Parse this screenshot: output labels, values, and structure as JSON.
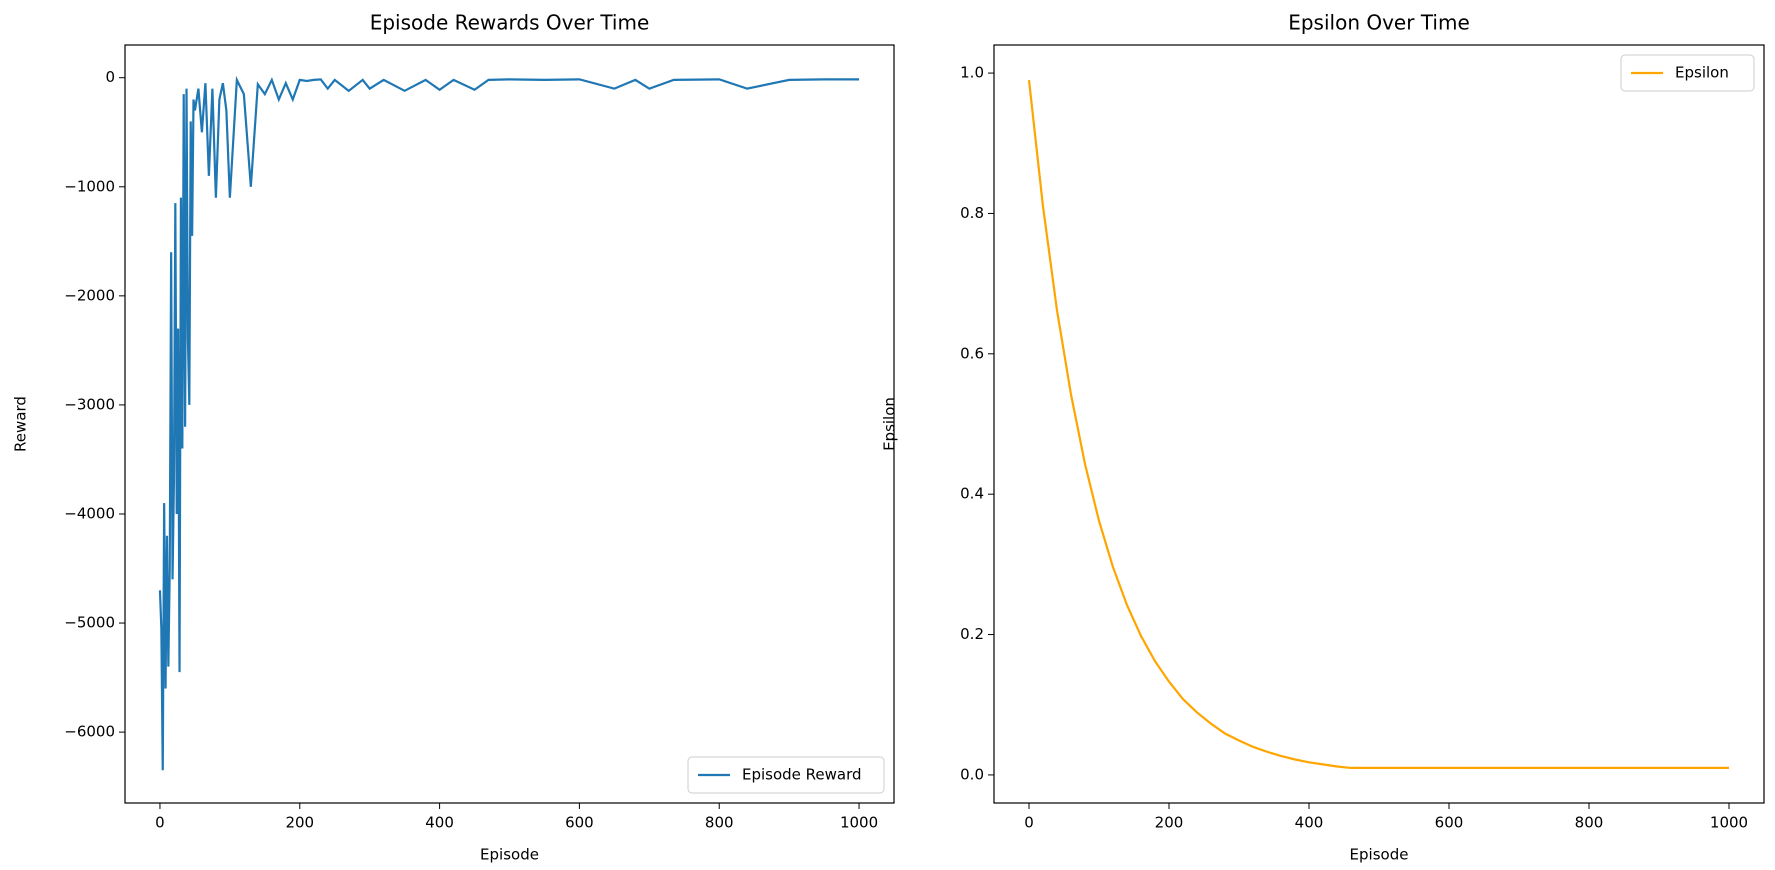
{
  "chart_data": [
    {
      "type": "line",
      "title": "Episode Rewards Over Time",
      "xlabel": "Episode",
      "ylabel": "Reward",
      "x": [
        0,
        2,
        4,
        6,
        8,
        10,
        12,
        14,
        16,
        18,
        20,
        22,
        24,
        26,
        28,
        30,
        32,
        34,
        36,
        38,
        40,
        42,
        44,
        46,
        48,
        50,
        55,
        60,
        65,
        70,
        75,
        80,
        85,
        90,
        95,
        100,
        110,
        120,
        130,
        140,
        150,
        160,
        170,
        180,
        190,
        200,
        210,
        220,
        230,
        240,
        250,
        270,
        290,
        300,
        320,
        350,
        380,
        400,
        420,
        450,
        470,
        500,
        550,
        600,
        650,
        680,
        700,
        735,
        800,
        840,
        900,
        950,
        1000
      ],
      "series": [
        {
          "name": "Episode Reward",
          "color": "#1f77b4",
          "values": [
            -4700,
            -5050,
            -6350,
            -3900,
            -5600,
            -4200,
            -5400,
            -4500,
            -1600,
            -4600,
            -3700,
            -1150,
            -4000,
            -2300,
            -5450,
            -1100,
            -3400,
            -150,
            -3200,
            -100,
            -2400,
            -3000,
            -400,
            -1450,
            -200,
            -300,
            -100,
            -500,
            -50,
            -900,
            -100,
            -1100,
            -200,
            -50,
            -300,
            -1100,
            -20,
            -150,
            -1000,
            -60,
            -150,
            -20,
            -200,
            -50,
            -200,
            -20,
            -30,
            -20,
            -15,
            -100,
            -20,
            -120,
            -20,
            -100,
            -20,
            -120,
            -20,
            -110,
            -20,
            -110,
            -20,
            -15,
            -20,
            -15,
            -100,
            -20,
            -100,
            -20,
            -15,
            -100,
            -20,
            -15,
            -15
          ]
        }
      ],
      "xlim": [
        -50,
        1050
      ],
      "ylim": [
        -6650,
        300
      ],
      "xticks": [
        0,
        200,
        400,
        600,
        800,
        1000
      ],
      "yticks": [
        {
          "value": -6000,
          "label": "−6000"
        },
        {
          "value": -5000,
          "label": "−5000"
        },
        {
          "value": -4000,
          "label": "−4000"
        },
        {
          "value": -3000,
          "label": "−3000"
        },
        {
          "value": -2000,
          "label": "−2000"
        },
        {
          "value": -1000,
          "label": "−1000"
        },
        0
      ],
      "legend": "lower right"
    },
    {
      "type": "line",
      "title": "Epsilon Over Time",
      "xlabel": "Episode",
      "ylabel": "Epsilon",
      "x": [
        0,
        20,
        40,
        60,
        80,
        100,
        120,
        140,
        160,
        180,
        200,
        220,
        240,
        260,
        280,
        300,
        320,
        340,
        360,
        380,
        400,
        420,
        440,
        460,
        1000
      ],
      "series": [
        {
          "name": "Epsilon",
          "color": "#ffa500",
          "values": [
            0.99,
            0.81,
            0.662,
            0.542,
            0.443,
            0.362,
            0.296,
            0.242,
            0.198,
            0.162,
            0.133,
            0.108,
            0.089,
            0.073,
            0.059,
            0.049,
            0.04,
            0.033,
            0.027,
            0.022,
            0.018,
            0.015,
            0.012,
            0.01,
            0.01
          ]
        }
      ],
      "xlim": [
        -50,
        1050
      ],
      "ylim": [
        -0.04,
        1.04
      ],
      "xticks": [
        0,
        200,
        400,
        600,
        800,
        1000
      ],
      "yticks": [
        {
          "value": 0,
          "label": "0.0"
        },
        {
          "value": 0.2,
          "label": "0.2"
        },
        {
          "value": 0.4,
          "label": "0.4"
        },
        {
          "value": 0.6,
          "label": "0.6"
        },
        {
          "value": 0.8,
          "label": "0.8"
        },
        {
          "value": 1,
          "label": "1.0"
        }
      ],
      "legend": "upper right"
    }
  ]
}
